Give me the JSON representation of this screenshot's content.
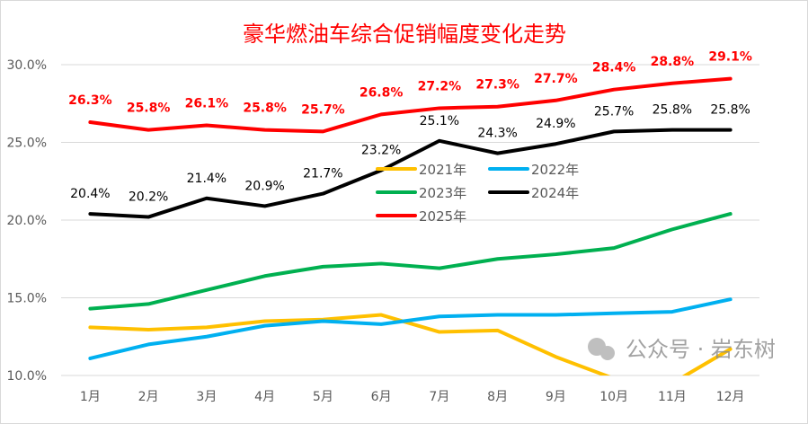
{
  "chart_data": {
    "type": "line",
    "title": "豪华燃油车综合促销幅度变化走势",
    "categories": [
      "1月",
      "2月",
      "3月",
      "4月",
      "5月",
      "6月",
      "7月",
      "8月",
      "9月",
      "10月",
      "11月",
      "12月"
    ],
    "ylim": [
      10,
      30
    ],
    "yticks": [
      "10.0%",
      "15.0%",
      "20.0%",
      "25.0%",
      "30.0%"
    ],
    "ytick_values": [
      10,
      15,
      20,
      25,
      30
    ],
    "grid": "horizontal",
    "legend_placement": "center",
    "series": [
      {
        "name": "2021年",
        "color": "#ffc000",
        "values": [
          13.1,
          12.95,
          13.1,
          13.5,
          13.6,
          13.9,
          12.8,
          12.9,
          11.2,
          9.8,
          9.5,
          11.7
        ],
        "labels": false
      },
      {
        "name": "2022年",
        "color": "#00b0f0",
        "values": [
          11.1,
          12.0,
          12.5,
          13.2,
          13.5,
          13.3,
          13.8,
          13.9,
          13.9,
          14.0,
          14.1,
          14.9
        ],
        "labels": false
      },
      {
        "name": "2023年",
        "color": "#00b050",
        "values": [
          14.3,
          14.6,
          15.5,
          16.4,
          17.0,
          17.2,
          16.9,
          17.5,
          17.8,
          18.2,
          19.4,
          20.4
        ],
        "labels": false
      },
      {
        "name": "2024年",
        "color": "#000000",
        "values": [
          20.4,
          20.2,
          21.4,
          20.9,
          21.7,
          23.2,
          25.1,
          24.3,
          24.9,
          25.7,
          25.8,
          25.8
        ],
        "labels": true,
        "data_labels": [
          "20.4%",
          "20.2%",
          "21.4%",
          "20.9%",
          "21.7%",
          "23.2%",
          "25.1%",
          "24.3%",
          "24.9%",
          "25.7%",
          "25.8%",
          "25.8%"
        ]
      },
      {
        "name": "2025年",
        "color": "#ff0000",
        "values": [
          26.3,
          25.8,
          26.1,
          25.8,
          25.7,
          26.8,
          27.2,
          27.3,
          27.7,
          28.4,
          28.8,
          29.1
        ],
        "labels": true,
        "data_labels": [
          "26.3%",
          "25.8%",
          "26.1%",
          "25.8%",
          "25.7%",
          "26.8%",
          "27.2%",
          "27.3%",
          "27.7%",
          "28.4%",
          "28.8%",
          "29.1%"
        ]
      }
    ]
  },
  "watermark": "公众号 · 岩东树"
}
